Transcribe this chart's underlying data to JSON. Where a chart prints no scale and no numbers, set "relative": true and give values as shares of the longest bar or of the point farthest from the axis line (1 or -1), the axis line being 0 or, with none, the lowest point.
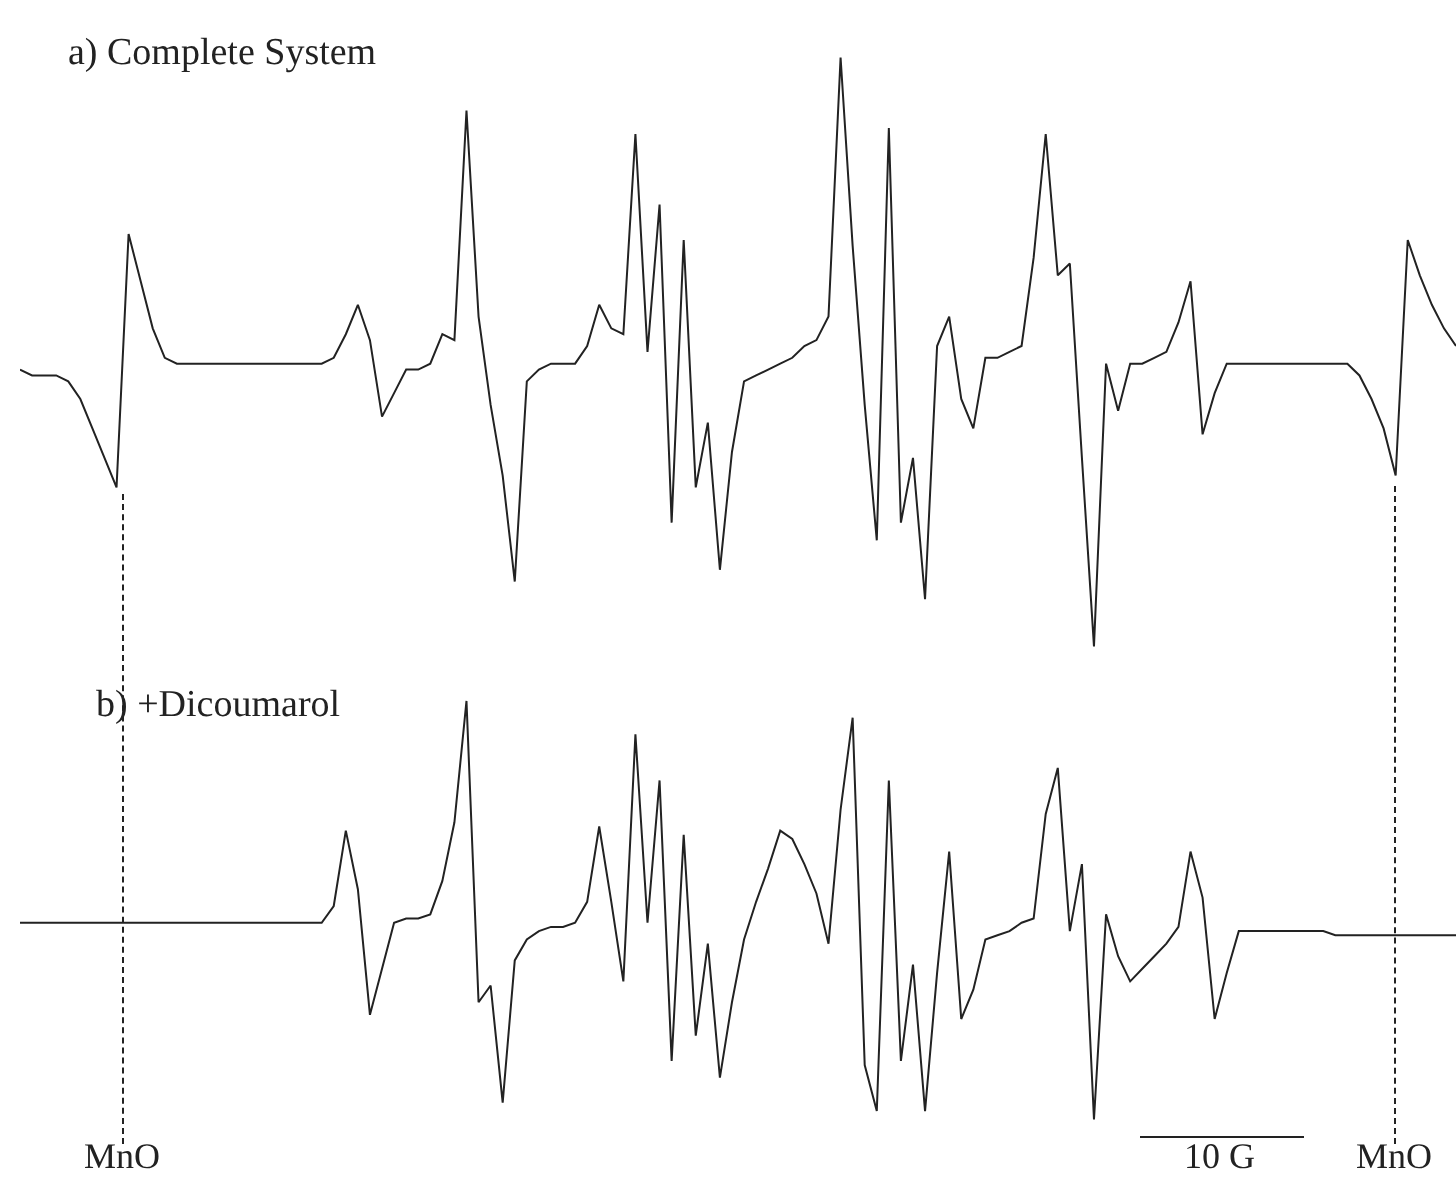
{
  "chart_data": [
    {
      "type": "line",
      "relative": true,
      "legend": false,
      "line_style": "solid",
      "marker": "none",
      "categories": [
        null,
        null,
        null,
        null,
        null,
        null,
        null,
        null,
        null,
        null,
        null,
        null,
        null,
        null,
        null,
        null,
        null,
        null,
        null,
        null,
        null,
        null,
        null,
        null,
        null,
        null,
        null,
        null,
        null,
        null,
        null,
        null,
        null,
        null,
        null,
        null,
        null,
        null,
        null,
        null,
        null,
        null,
        null,
        null,
        null,
        null,
        null,
        null,
        null,
        null,
        null,
        null,
        null,
        null,
        null,
        null,
        null,
        null,
        null,
        null,
        null,
        null,
        null,
        null,
        null,
        null,
        null,
        null,
        null,
        null,
        null,
        null,
        null,
        null,
        null,
        null,
        null,
        null,
        null,
        null,
        null,
        null,
        null,
        null,
        null,
        null,
        null,
        null,
        null,
        null,
        null,
        null,
        null,
        null,
        null,
        null,
        null,
        null,
        null,
        null,
        null,
        null,
        null,
        null,
        null,
        null,
        null,
        null,
        null,
        null,
        null,
        null,
        null,
        null,
        null,
        null,
        null,
        null,
        null,
        null
      ],
      "series": [
        {
          "name": "a) Complete System",
          "color": "#222222",
          "values": [
            0.47,
            0.46,
            0.46,
            0.46,
            0.45,
            0.42,
            0.37,
            0.32,
            0.27,
            0.7,
            0.62,
            0.54,
            0.49,
            0.48,
            0.48,
            0.48,
            0.48,
            0.48,
            0.48,
            0.48,
            0.48,
            0.48,
            0.48,
            0.48,
            0.48,
            0.48,
            0.49,
            0.53,
            0.58,
            0.52,
            0.39,
            0.43,
            0.47,
            0.47,
            0.48,
            0.53,
            0.52,
            0.91,
            0.56,
            0.41,
            0.29,
            0.11,
            0.45,
            0.47,
            0.48,
            0.48,
            0.48,
            0.51,
            0.58,
            0.54,
            0.53,
            0.87,
            0.5,
            0.75,
            0.21,
            0.69,
            0.27,
            0.38,
            0.13,
            0.33,
            0.45,
            0.46,
            0.47,
            0.48,
            0.49,
            0.51,
            0.52,
            0.56,
            1.0,
            0.68,
            0.41,
            0.18,
            0.88,
            0.21,
            0.32,
            0.08,
            0.51,
            0.56,
            0.42,
            0.37,
            0.49,
            0.49,
            0.5,
            0.51,
            0.66,
            0.87,
            0.63,
            0.65,
            0.32,
            0.0,
            0.48,
            0.4,
            0.48,
            0.48,
            0.49,
            0.5,
            0.55,
            0.62,
            0.36,
            0.43,
            0.48,
            0.48,
            0.48,
            0.48,
            0.48,
            0.48,
            0.48,
            0.48,
            0.48,
            0.48,
            0.48,
            0.46,
            0.42,
            0.37,
            0.29,
            0.69,
            0.63,
            0.58,
            0.54,
            0.51
          ]
        }
      ]
    },
    {
      "type": "line",
      "relative": true,
      "legend": false,
      "line_style": "solid",
      "marker": "none",
      "categories": [
        null,
        null,
        null,
        null,
        null,
        null,
        null,
        null,
        null,
        null,
        null,
        null,
        null,
        null,
        null,
        null,
        null,
        null,
        null,
        null,
        null,
        null,
        null,
        null,
        null,
        null,
        null,
        null,
        null,
        null,
        null,
        null,
        null,
        null,
        null,
        null,
        null,
        null,
        null,
        null,
        null,
        null,
        null,
        null,
        null,
        null,
        null,
        null,
        null,
        null,
        null,
        null,
        null,
        null,
        null,
        null,
        null,
        null,
        null,
        null,
        null,
        null,
        null,
        null,
        null,
        null,
        null,
        null,
        null,
        null,
        null,
        null,
        null,
        null,
        null,
        null,
        null,
        null,
        null,
        null,
        null,
        null,
        null,
        null,
        null,
        null,
        null,
        null,
        null,
        null,
        null,
        null,
        null,
        null,
        null,
        null,
        null,
        null,
        null,
        null,
        null,
        null,
        null,
        null,
        null,
        null,
        null,
        null,
        null,
        null,
        null,
        null,
        null,
        null,
        null,
        null,
        null,
        null,
        null,
        null
      ],
      "series": [
        {
          "name": "b) +Dicoumarol",
          "color": "#222222",
          "values": [
            0.47,
            0.47,
            0.47,
            0.47,
            0.47,
            0.47,
            0.47,
            0.47,
            0.47,
            0.47,
            0.47,
            0.47,
            0.47,
            0.47,
            0.47,
            0.47,
            0.47,
            0.47,
            0.47,
            0.47,
            0.47,
            0.47,
            0.47,
            0.47,
            0.47,
            0.47,
            0.51,
            0.69,
            0.55,
            0.25,
            0.36,
            0.47,
            0.48,
            0.48,
            0.49,
            0.57,
            0.71,
            1.0,
            0.28,
            0.32,
            0.04,
            0.38,
            0.43,
            0.45,
            0.46,
            0.46,
            0.47,
            0.52,
            0.7,
            0.52,
            0.33,
            0.92,
            0.47,
            0.81,
            0.14,
            0.68,
            0.2,
            0.42,
            0.1,
            0.28,
            0.43,
            0.52,
            0.6,
            0.69,
            0.67,
            0.61,
            0.54,
            0.42,
            0.74,
            0.96,
            0.13,
            0.02,
            0.81,
            0.14,
            0.37,
            0.02,
            0.35,
            0.64,
            0.24,
            0.31,
            0.43,
            0.44,
            0.45,
            0.47,
            0.48,
            0.73,
            0.84,
            0.45,
            0.61,
            0.0,
            0.49,
            0.39,
            0.33,
            0.36,
            0.39,
            0.42,
            0.46,
            0.64,
            0.53,
            0.24,
            0.35,
            0.45,
            0.45,
            0.45,
            0.45,
            0.45,
            0.45,
            0.45,
            0.45,
            0.44,
            0.44,
            0.44,
            0.44,
            0.44,
            0.44,
            0.44,
            0.44,
            0.44,
            0.44,
            0.44
          ]
        }
      ],
      "annotations": [
        "MnO",
        "10 G",
        "MnO"
      ]
    }
  ]
}
